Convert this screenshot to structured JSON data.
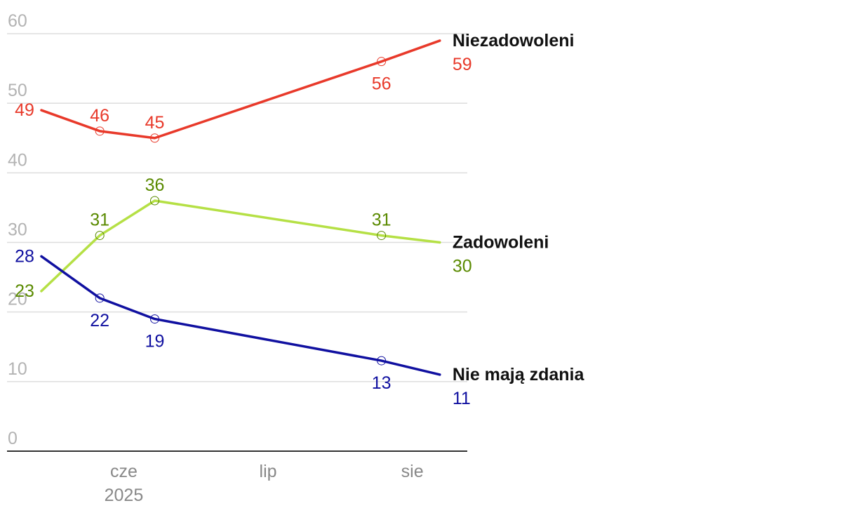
{
  "chart_data": {
    "type": "line",
    "ylim": [
      0,
      60
    ],
    "yticks": [
      "0",
      "10",
      "20",
      "30",
      "40",
      "50",
      "60"
    ],
    "xlim": [
      0,
      6.7
    ],
    "xticks": [
      {
        "pos": 1.7,
        "label": "cze",
        "sublabel": "2025"
      },
      {
        "pos": 3.8,
        "label": "lip",
        "sublabel": ""
      },
      {
        "pos": 5.9,
        "label": "sie",
        "sublabel": ""
      }
    ],
    "series": [
      {
        "name": "Niezadowoleni",
        "last_value": "59",
        "color": "#e8392a",
        "label_color": "#e8392a",
        "x": [
          0.5,
          1.35,
          2.15,
          5.45,
          6.3
        ],
        "values": [
          49,
          46,
          45,
          56,
          59
        ],
        "labels": [
          "49",
          "46",
          "45",
          "56",
          "59"
        ],
        "label_pos": [
          "left",
          "above",
          "above",
          "below",
          "end"
        ]
      },
      {
        "name": "Zadowoleni",
        "last_value": "30",
        "color": "#b5e045",
        "label_color": "#5a8a00",
        "x": [
          0.5,
          1.35,
          2.15,
          5.45,
          6.3
        ],
        "values": [
          23,
          31,
          36,
          31,
          30
        ],
        "labels": [
          "23",
          "31",
          "36",
          "31",
          "30"
        ],
        "label_pos": [
          "left",
          "above",
          "above",
          "above",
          "end"
        ]
      },
      {
        "name": "Nie mają zdania",
        "last_value": "11",
        "color": "#1010a0",
        "label_color": "#1010a0",
        "x": [
          0.5,
          1.35,
          2.15,
          5.45,
          6.3
        ],
        "values": [
          28,
          22,
          19,
          13,
          11
        ],
        "labels": [
          "28",
          "22",
          "19",
          "13",
          "11"
        ],
        "label_pos": [
          "left",
          "below",
          "below",
          "below",
          "end"
        ]
      }
    ]
  }
}
